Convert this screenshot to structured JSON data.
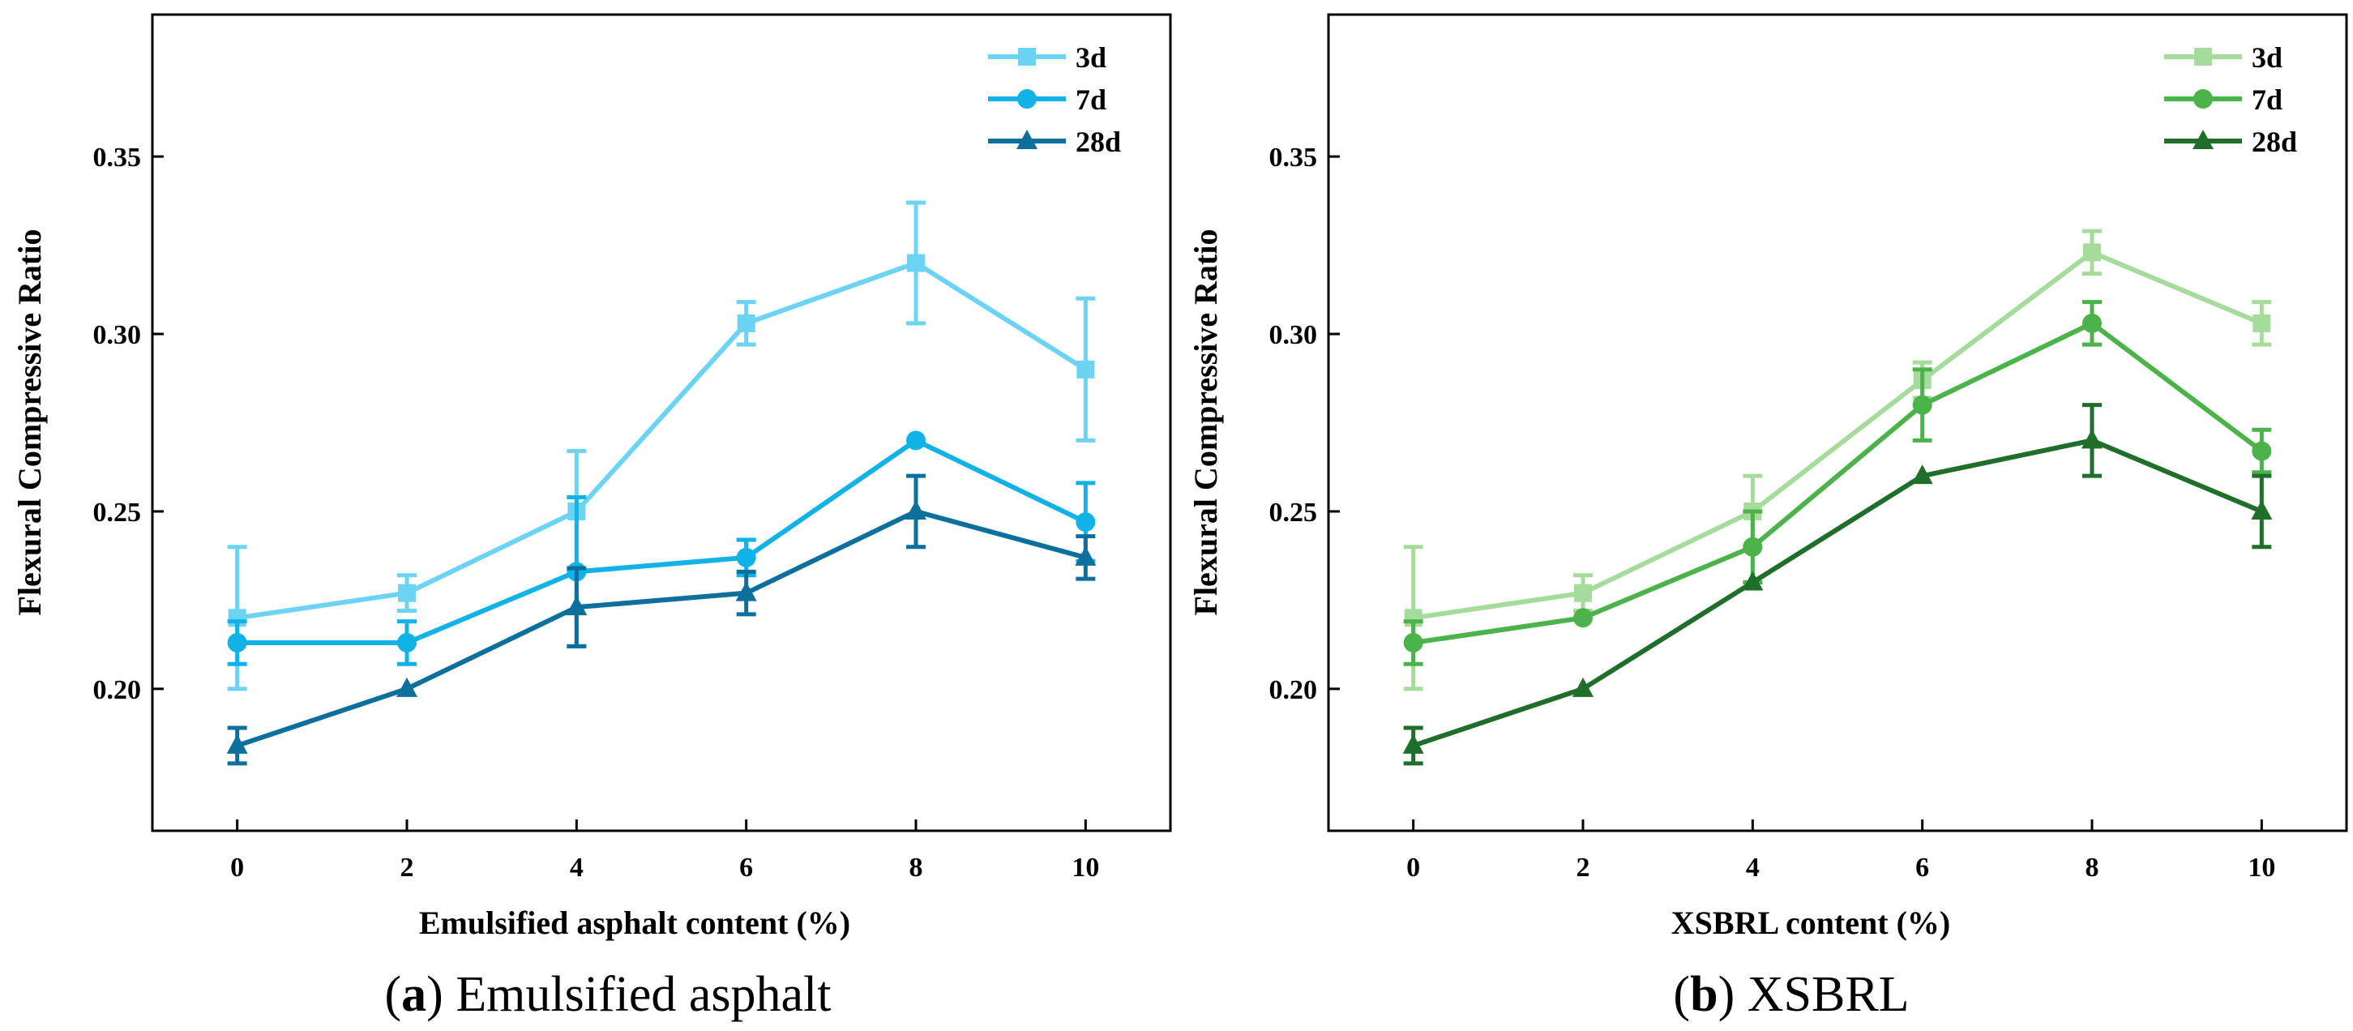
{
  "chart_data": [
    {
      "type": "line",
      "caption_letter": "a",
      "caption_text": "Emulsified asphalt",
      "xlabel": "Emulsified asphalt content (%)",
      "ylabel": "Flexural Compressive Ratio",
      "x": [
        0,
        2,
        4,
        6,
        8,
        10
      ],
      "x_tick_labels": [
        "0",
        "2",
        "4",
        "6",
        "8",
        "10"
      ],
      "xlim": [
        -1,
        11
      ],
      "ylim": [
        0.16,
        0.39
      ],
      "y_ticks": [
        0.2,
        0.25,
        0.3,
        0.35
      ],
      "y_tick_labels": [
        "0.20",
        "0.25",
        "0.30",
        "0.35"
      ],
      "grid": false,
      "legend_position": "top-right",
      "series": [
        {
          "name": "3d",
          "marker": "square",
          "color": "#6dd3f2",
          "values": [
            0.22,
            0.227,
            0.25,
            0.303,
            0.32,
            0.29
          ],
          "errors": [
            0.02,
            0.005,
            0.017,
            0.006,
            0.017,
            0.02
          ]
        },
        {
          "name": "7d",
          "marker": "circle",
          "color": "#11b2e6",
          "values": [
            0.213,
            0.213,
            0.233,
            0.237,
            0.27,
            0.247
          ],
          "errors": [
            0.006,
            0.006,
            0.021,
            0.005,
            0.0,
            0.011
          ]
        },
        {
          "name": "28d",
          "marker": "triangle",
          "color": "#0d6f9c",
          "values": [
            0.184,
            0.2,
            0.223,
            0.227,
            0.25,
            0.237
          ],
          "errors": [
            0.005,
            0.0,
            0.011,
            0.006,
            0.01,
            0.006
          ]
        }
      ]
    },
    {
      "type": "line",
      "caption_letter": "b",
      "caption_text": "XSBRL",
      "xlabel": "XSBRL content (%)",
      "ylabel": "Flexural Compressive Ratio",
      "x": [
        0,
        2,
        4,
        6,
        8,
        10
      ],
      "x_tick_labels": [
        "0",
        "2",
        "4",
        "6",
        "8",
        "10"
      ],
      "xlim": [
        -1,
        11
      ],
      "ylim": [
        0.16,
        0.39
      ],
      "y_ticks": [
        0.2,
        0.25,
        0.3,
        0.35
      ],
      "y_tick_labels": [
        "0.20",
        "0.25",
        "0.30",
        "0.35"
      ],
      "grid": false,
      "legend_position": "top-right",
      "series": [
        {
          "name": "3d",
          "marker": "square",
          "color": "#a6dc9b",
          "values": [
            0.22,
            0.227,
            0.25,
            0.287,
            0.323,
            0.303
          ],
          "errors": [
            0.02,
            0.005,
            0.01,
            0.005,
            0.006,
            0.006
          ]
        },
        {
          "name": "7d",
          "marker": "circle",
          "color": "#4cb24a",
          "values": [
            0.213,
            0.22,
            0.24,
            0.28,
            0.303,
            0.267
          ],
          "errors": [
            0.006,
            0.0,
            0.01,
            0.01,
            0.006,
            0.006
          ]
        },
        {
          "name": "28d",
          "marker": "triangle",
          "color": "#1f6e2a",
          "values": [
            0.184,
            0.2,
            0.23,
            0.26,
            0.27,
            0.25
          ],
          "errors": [
            0.005,
            0.0,
            0.0,
            0.0,
            0.01,
            0.01
          ]
        }
      ]
    }
  ]
}
